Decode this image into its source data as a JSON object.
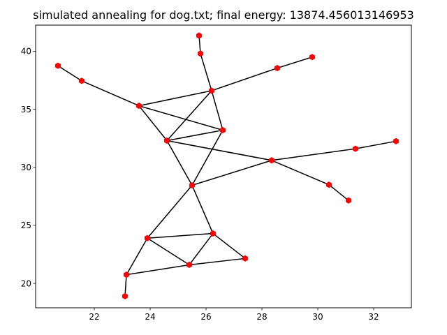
{
  "chart_data": {
    "type": "network",
    "title": "simulated annealing for dog.txt; final energy: 13874.456013146953",
    "xlabel": "",
    "ylabel": "",
    "xlim": [
      19.9,
      33.35
    ],
    "ylim": [
      17.9,
      42.25
    ],
    "x_ticks": [
      22,
      24,
      26,
      28,
      30,
      32
    ],
    "y_ticks": [
      20,
      25,
      30,
      35,
      40
    ],
    "grid": false,
    "node_color": "#ff0000",
    "edge_color": "#000000",
    "nodes": [
      {
        "id": "n1",
        "x": 25.75,
        "y": 41.35
      },
      {
        "id": "n2",
        "x": 25.8,
        "y": 39.8
      },
      {
        "id": "n3",
        "x": 26.2,
        "y": 36.6
      },
      {
        "id": "n4",
        "x": 28.55,
        "y": 38.55
      },
      {
        "id": "n5",
        "x": 29.8,
        "y": 39.5
      },
      {
        "id": "n6",
        "x": 20.7,
        "y": 38.75
      },
      {
        "id": "n7",
        "x": 21.55,
        "y": 37.45
      },
      {
        "id": "n8",
        "x": 23.6,
        "y": 35.3
      },
      {
        "id": "n9",
        "x": 26.6,
        "y": 33.2
      },
      {
        "id": "n10",
        "x": 24.6,
        "y": 32.3
      },
      {
        "id": "n11",
        "x": 28.35,
        "y": 30.6
      },
      {
        "id": "n12",
        "x": 31.35,
        "y": 31.6
      },
      {
        "id": "n13",
        "x": 32.8,
        "y": 32.25
      },
      {
        "id": "n14",
        "x": 30.4,
        "y": 28.5
      },
      {
        "id": "n15",
        "x": 31.1,
        "y": 27.15
      },
      {
        "id": "n16",
        "x": 25.5,
        "y": 28.45
      },
      {
        "id": "n17",
        "x": 23.9,
        "y": 23.9
      },
      {
        "id": "n18",
        "x": 26.25,
        "y": 24.3
      },
      {
        "id": "n19",
        "x": 25.4,
        "y": 21.6
      },
      {
        "id": "n20",
        "x": 27.4,
        "y": 22.15
      },
      {
        "id": "n21",
        "x": 23.15,
        "y": 20.75
      },
      {
        "id": "n22",
        "x": 23.1,
        "y": 18.9
      }
    ],
    "edges": [
      [
        "n1",
        "n2"
      ],
      [
        "n2",
        "n3"
      ],
      [
        "n3",
        "n4"
      ],
      [
        "n4",
        "n5"
      ],
      [
        "n6",
        "n7"
      ],
      [
        "n7",
        "n8"
      ],
      [
        "n8",
        "n3"
      ],
      [
        "n8",
        "n9"
      ],
      [
        "n8",
        "n10"
      ],
      [
        "n3",
        "n10"
      ],
      [
        "n3",
        "n9"
      ],
      [
        "n10",
        "n9"
      ],
      [
        "n10",
        "n11"
      ],
      [
        "n9",
        "n16"
      ],
      [
        "n10",
        "n16"
      ],
      [
        "n11",
        "n16"
      ],
      [
        "n11",
        "n12"
      ],
      [
        "n12",
        "n13"
      ],
      [
        "n11",
        "n14"
      ],
      [
        "n14",
        "n15"
      ],
      [
        "n16",
        "n17"
      ],
      [
        "n16",
        "n18"
      ],
      [
        "n17",
        "n18"
      ],
      [
        "n17",
        "n19"
      ],
      [
        "n18",
        "n19"
      ],
      [
        "n18",
        "n20"
      ],
      [
        "n19",
        "n20"
      ],
      [
        "n19",
        "n21"
      ],
      [
        "n17",
        "n21"
      ],
      [
        "n21",
        "n22"
      ]
    ]
  }
}
